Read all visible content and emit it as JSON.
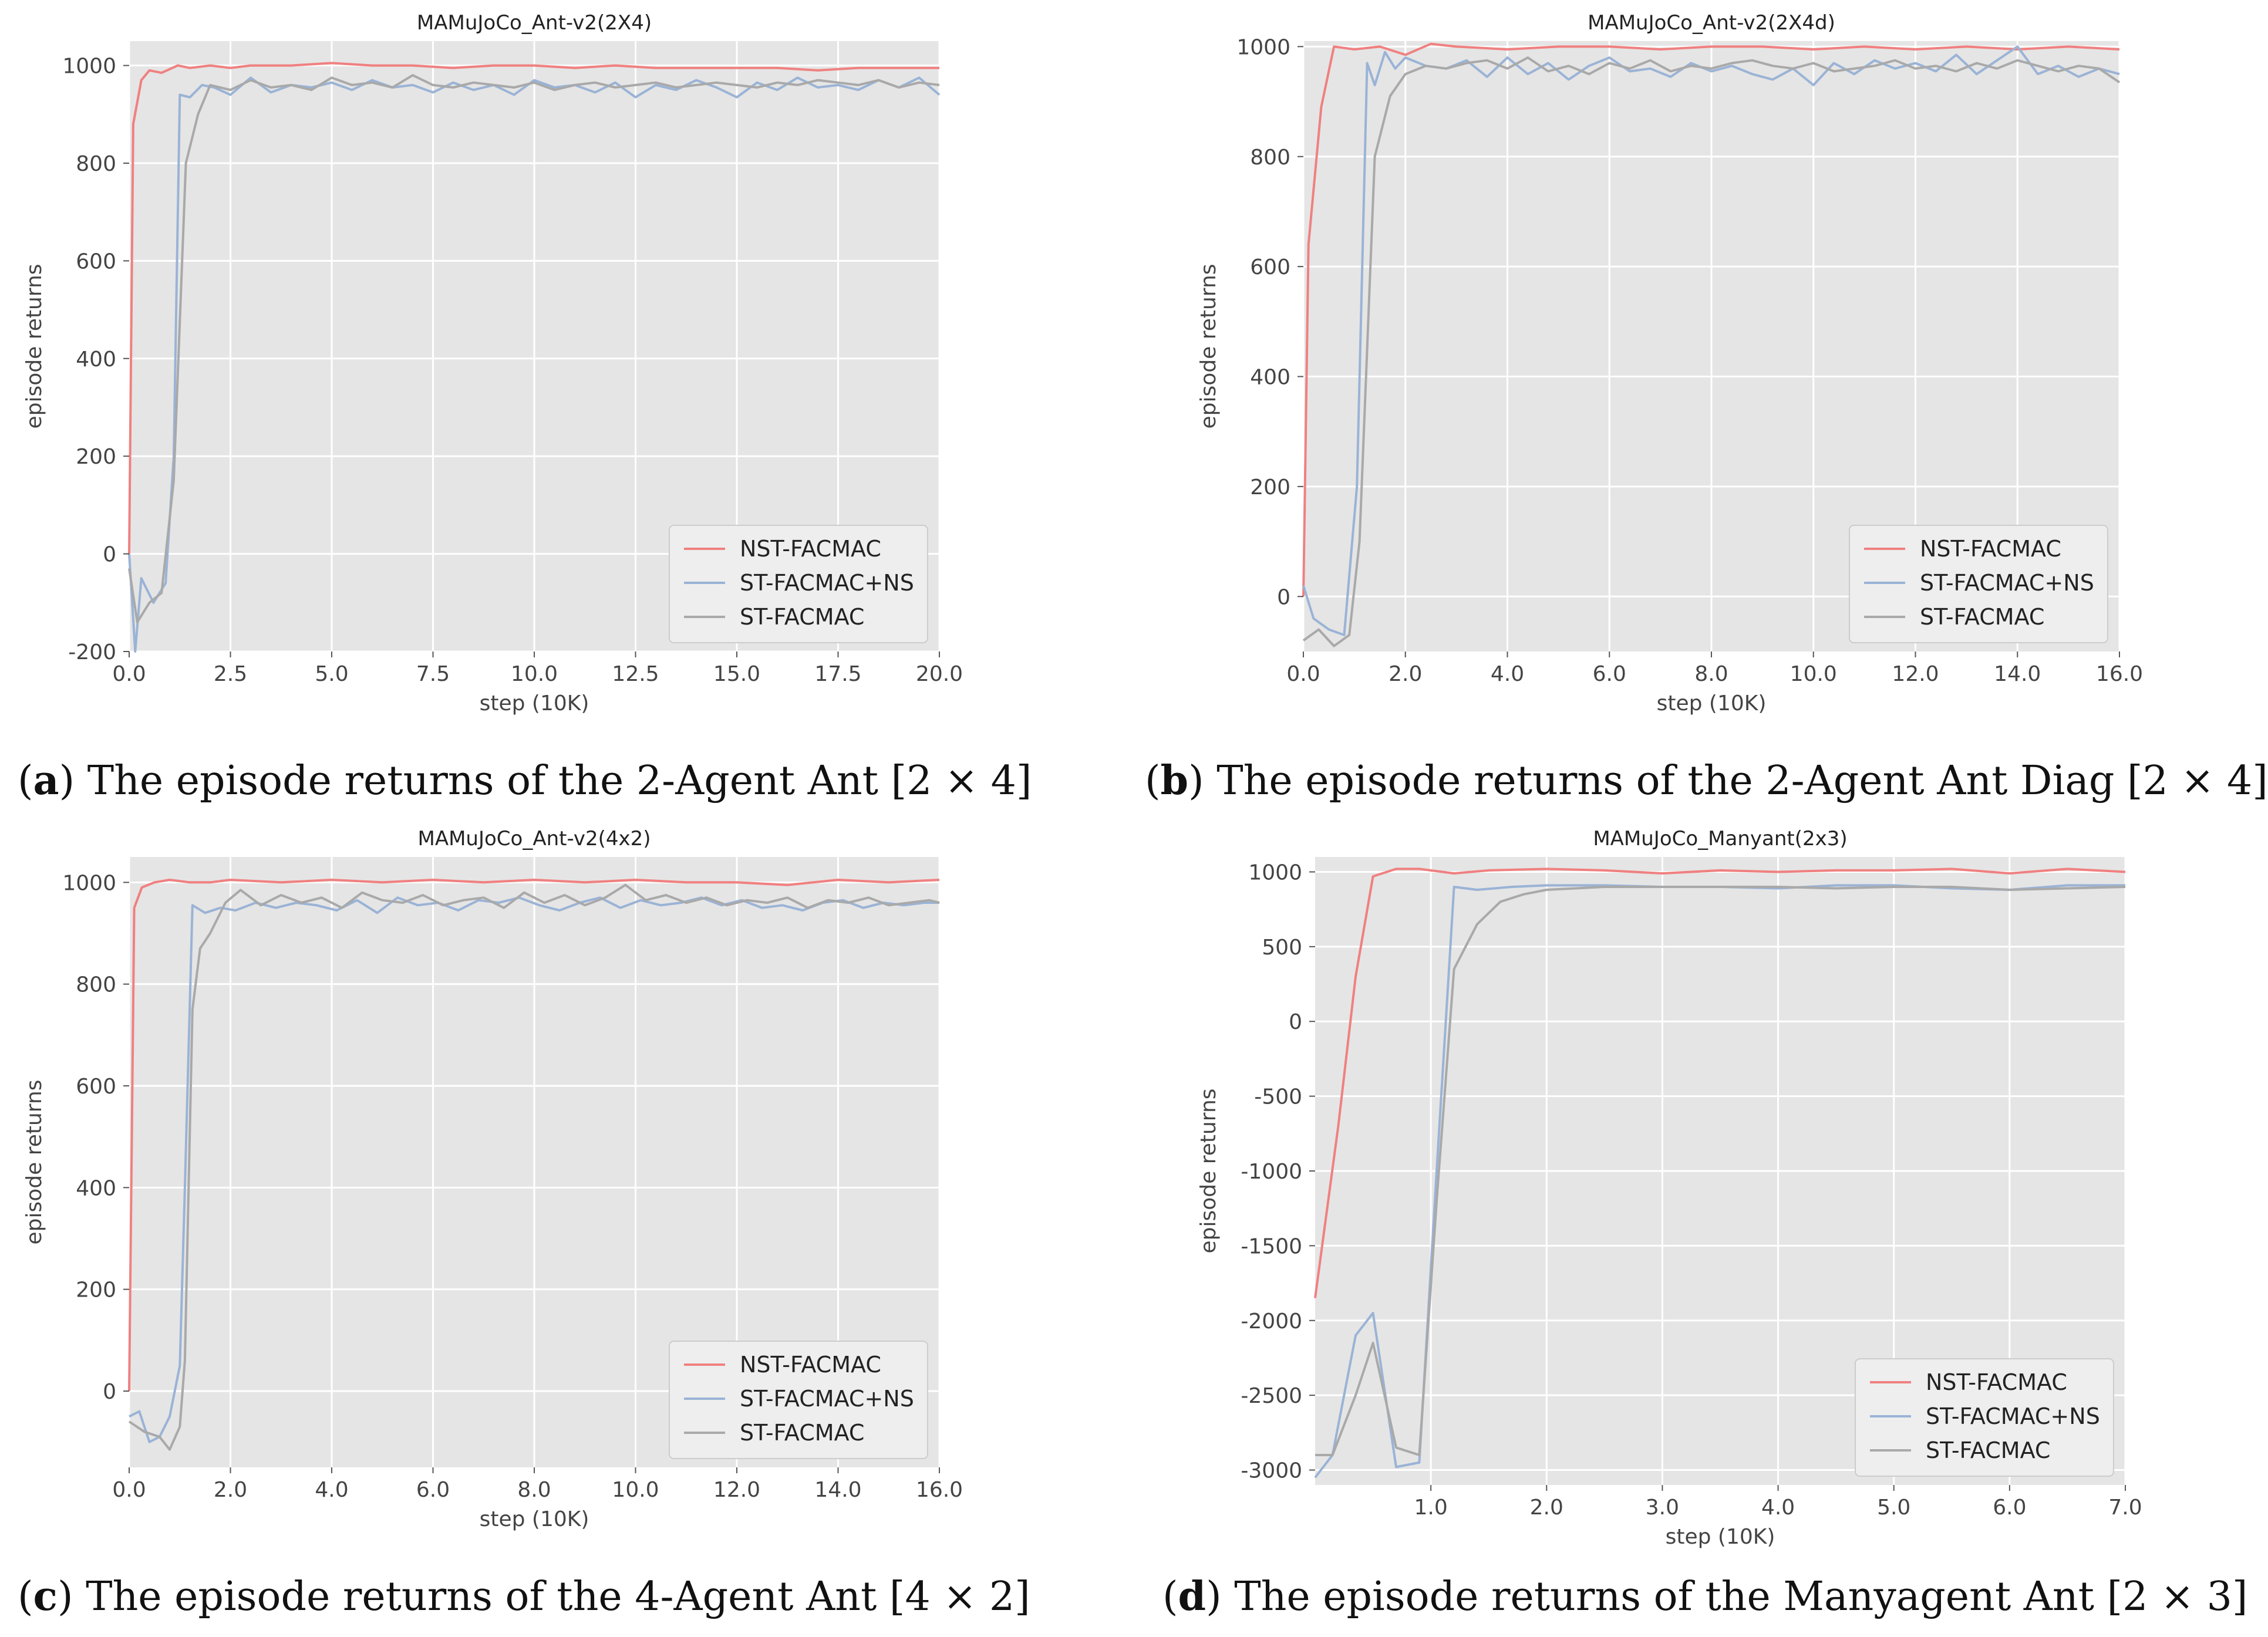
{
  "colors": {
    "nst": "#f08080",
    "stns": "#9ab3d6",
    "st": "#a9a9a9",
    "bg": "#e5e5e5",
    "grid": "#ffffff"
  },
  "legend": [
    "NST-FACMAC",
    "ST-FACMAC+NS",
    "ST-FACMAC"
  ],
  "captions": [
    {
      "letter": "a",
      "text": ") The episode returns of the 2-Agent Ant [2 × 4]"
    },
    {
      "letter": "b",
      "text": ") The episode returns of the 2-Agent Ant Diag [2 × 4]"
    },
    {
      "letter": "c",
      "text": ") The episode returns of the 4-Agent Ant [4 × 2]"
    },
    {
      "letter": "d",
      "text": ") The episode returns of the Manyagent Ant [2 × 3]"
    }
  ],
  "chart_data": [
    {
      "type": "line",
      "title": "MAMuJoCo_Ant-v2(2X4)",
      "xlabel": "step (10K)",
      "ylabel": "episode returns",
      "xlim": [
        0,
        20
      ],
      "ylim": [
        -200,
        1050
      ],
      "xticks": [
        0,
        2.5,
        5,
        7.5,
        10,
        12.5,
        15,
        17.5,
        20
      ],
      "xtick_labels": [
        "0.0",
        "2.5",
        "5.0",
        "7.5",
        "10.0",
        "12.5",
        "15.0",
        "17.5",
        "20.0"
      ],
      "yticks": [
        -200,
        0,
        200,
        400,
        600,
        800,
        1000
      ],
      "ytick_labels": [
        "-200",
        "0",
        "200",
        "400",
        "600",
        "800",
        "1000"
      ],
      "series": [
        {
          "name": "NST-FACMAC",
          "x": [
            0,
            0.1,
            0.3,
            0.5,
            0.8,
            1.2,
            1.5,
            2,
            2.5,
            3,
            4,
            5,
            6,
            7,
            8,
            9,
            10,
            11,
            12,
            13,
            14,
            15,
            16,
            17,
            18,
            19,
            20
          ],
          "y": [
            0,
            880,
            970,
            990,
            985,
            1000,
            995,
            1000,
            995,
            1000,
            1000,
            1005,
            1000,
            1000,
            995,
            1000,
            1000,
            995,
            1000,
            995,
            995,
            995,
            995,
            990,
            995,
            995,
            995
          ]
        },
        {
          "name": "ST-FACMAC+NS",
          "x": [
            0,
            0.15,
            0.3,
            0.6,
            0.9,
            1.1,
            1.25,
            1.5,
            1.8,
            2.1,
            2.5,
            3,
            3.5,
            4,
            4.5,
            5,
            5.5,
            6,
            6.5,
            7,
            7.5,
            8,
            8.5,
            9,
            9.5,
            10,
            10.5,
            11,
            11.5,
            12,
            12.5,
            13,
            13.5,
            14,
            14.5,
            15,
            15.5,
            16,
            16.5,
            17,
            17.5,
            18,
            18.5,
            19,
            19.5,
            20
          ],
          "y": [
            0,
            -200,
            -50,
            -100,
            -60,
            200,
            940,
            935,
            960,
            955,
            940,
            975,
            945,
            960,
            955,
            965,
            950,
            970,
            955,
            960,
            945,
            965,
            950,
            960,
            940,
            970,
            955,
            960,
            945,
            965,
            935,
            960,
            950,
            970,
            955,
            935,
            965,
            950,
            975,
            955,
            960,
            950,
            970,
            955,
            975,
            940
          ]
        },
        {
          "name": "ST-FACMAC",
          "x": [
            0,
            0.2,
            0.5,
            0.8,
            1.1,
            1.4,
            1.7,
            2.0,
            2.5,
            3,
            3.5,
            4,
            4.5,
            5,
            5.5,
            6,
            6.5,
            7,
            7.5,
            8,
            8.5,
            9,
            9.5,
            10,
            10.5,
            11,
            11.5,
            12,
            12.5,
            13,
            13.5,
            14,
            14.5,
            15,
            15.5,
            16,
            16.5,
            17,
            17.5,
            18,
            18.5,
            19,
            19.5,
            20
          ],
          "y": [
            -30,
            -140,
            -100,
            -80,
            150,
            800,
            900,
            960,
            950,
            970,
            955,
            960,
            950,
            975,
            960,
            965,
            955,
            980,
            960,
            955,
            965,
            960,
            955,
            965,
            950,
            960,
            965,
            955,
            960,
            965,
            955,
            960,
            965,
            960,
            955,
            965,
            960,
            970,
            965,
            960,
            970,
            955,
            965,
            960
          ]
        }
      ]
    },
    {
      "type": "line",
      "title": "MAMuJoCo_Ant-v2(2X4d)",
      "xlabel": "step (10K)",
      "ylabel": "episode returns",
      "xlim": [
        0,
        16
      ],
      "ylim": [
        -100,
        1010
      ],
      "xticks": [
        0,
        2,
        4,
        6,
        8,
        10,
        12,
        14,
        16
      ],
      "xtick_labels": [
        "0.0",
        "2.0",
        "4.0",
        "6.0",
        "8.0",
        "10.0",
        "12.0",
        "14.0",
        "16.0"
      ],
      "yticks": [
        0,
        200,
        400,
        600,
        800,
        1000
      ],
      "ytick_labels": [
        "0",
        "200",
        "400",
        "600",
        "800",
        "1000"
      ],
      "series": [
        {
          "name": "NST-FACMAC",
          "x": [
            0,
            0.1,
            0.35,
            0.6,
            1.0,
            1.5,
            2,
            2.5,
            3,
            4,
            5,
            6,
            7,
            8,
            9,
            10,
            11,
            12,
            13,
            14,
            15,
            16
          ],
          "y": [
            0,
            640,
            890,
            1000,
            995,
            1000,
            985,
            1005,
            1000,
            995,
            1000,
            1000,
            995,
            1000,
            1000,
            995,
            1000,
            995,
            1000,
            995,
            1000,
            995
          ]
        },
        {
          "name": "ST-FACMAC+NS",
          "x": [
            0,
            0.2,
            0.5,
            0.8,
            1.05,
            1.25,
            1.4,
            1.6,
            1.8,
            2.0,
            2.4,
            2.8,
            3.2,
            3.6,
            4.0,
            4.4,
            4.8,
            5.2,
            5.6,
            6.0,
            6.4,
            6.8,
            7.2,
            7.6,
            8.0,
            8.4,
            8.8,
            9.2,
            9.6,
            10.0,
            10.4,
            10.8,
            11.2,
            11.6,
            12.0,
            12.4,
            12.8,
            13.2,
            13.6,
            14.0,
            14.4,
            14.8,
            15.2,
            15.6,
            16.0
          ],
          "y": [
            20,
            -40,
            -60,
            -70,
            200,
            970,
            930,
            990,
            960,
            980,
            965,
            960,
            975,
            945,
            980,
            950,
            970,
            940,
            965,
            980,
            955,
            960,
            945,
            970,
            955,
            965,
            950,
            940,
            960,
            930,
            970,
            950,
            975,
            960,
            970,
            955,
            985,
            950,
            975,
            1000,
            950,
            965,
            945,
            960,
            950
          ]
        },
        {
          "name": "ST-FACMAC",
          "x": [
            0,
            0.3,
            0.6,
            0.9,
            1.1,
            1.4,
            1.7,
            2.0,
            2.4,
            2.8,
            3.2,
            3.6,
            4.0,
            4.4,
            4.8,
            5.2,
            5.6,
            6.0,
            6.4,
            6.8,
            7.2,
            7.6,
            8.0,
            8.4,
            8.8,
            9.2,
            9.6,
            10.0,
            10.4,
            10.8,
            11.2,
            11.6,
            12.0,
            12.4,
            12.8,
            13.2,
            13.6,
            14.0,
            14.4,
            14.8,
            15.2,
            15.6,
            16.0
          ],
          "y": [
            -80,
            -60,
            -90,
            -70,
            100,
            800,
            910,
            950,
            965,
            960,
            970,
            975,
            960,
            980,
            955,
            965,
            950,
            970,
            960,
            975,
            955,
            965,
            960,
            970,
            975,
            965,
            960,
            970,
            955,
            960,
            965,
            975,
            960,
            965,
            955,
            970,
            960,
            975,
            965,
            955,
            965,
            960,
            935
          ]
        }
      ]
    },
    {
      "type": "line",
      "title": "MAMuJoCo_Ant-v2(4x2)",
      "xlabel": "step (10K)",
      "ylabel": "episode returns",
      "xlim": [
        0,
        16
      ],
      "ylim": [
        -150,
        1050
      ],
      "xticks": [
        0,
        2,
        4,
        6,
        8,
        10,
        12,
        14,
        16
      ],
      "xtick_labels": [
        "0.0",
        "2.0",
        "4.0",
        "6.0",
        "8.0",
        "10.0",
        "12.0",
        "14.0",
        "16.0"
      ],
      "yticks": [
        0,
        200,
        400,
        600,
        800,
        1000
      ],
      "ytick_labels": [
        "0",
        "200",
        "400",
        "600",
        "800",
        "1000"
      ],
      "series": [
        {
          "name": "NST-FACMAC",
          "x": [
            0,
            0.1,
            0.25,
            0.5,
            0.8,
            1.2,
            1.6,
            2,
            3,
            4,
            5,
            6,
            7,
            8,
            9,
            10,
            11,
            12,
            13,
            14,
            15,
            16
          ],
          "y": [
            0,
            950,
            990,
            1000,
            1005,
            1000,
            1000,
            1005,
            1000,
            1005,
            1000,
            1005,
            1000,
            1005,
            1000,
            1005,
            1000,
            1000,
            995,
            1005,
            1000,
            1005
          ]
        },
        {
          "name": "ST-FACMAC+NS",
          "x": [
            0,
            0.2,
            0.4,
            0.6,
            0.8,
            1.0,
            1.1,
            1.25,
            1.5,
            1.8,
            2.1,
            2.5,
            2.9,
            3.3,
            3.7,
            4.1,
            4.5,
            4.9,
            5.3,
            5.7,
            6.1,
            6.5,
            6.9,
            7.3,
            7.7,
            8.1,
            8.5,
            8.9,
            9.3,
            9.7,
            10.1,
            10.5,
            10.9,
            11.3,
            11.7,
            12.1,
            12.5,
            12.9,
            13.3,
            13.7,
            14.1,
            14.5,
            14.9,
            15.3,
            15.7,
            16.0
          ],
          "y": [
            -50,
            -40,
            -100,
            -90,
            -50,
            50,
            400,
            955,
            940,
            950,
            945,
            960,
            950,
            960,
            955,
            945,
            965,
            940,
            970,
            955,
            960,
            945,
            965,
            960,
            970,
            955,
            945,
            960,
            970,
            950,
            965,
            955,
            960,
            970,
            955,
            965,
            950,
            955,
            945,
            960,
            965,
            950,
            960,
            955,
            960,
            960
          ]
        },
        {
          "name": "ST-FACMAC",
          "x": [
            0,
            0.3,
            0.6,
            0.8,
            1.0,
            1.1,
            1.25,
            1.4,
            1.6,
            1.9,
            2.2,
            2.6,
            3.0,
            3.4,
            3.8,
            4.2,
            4.6,
            5.0,
            5.4,
            5.8,
            6.2,
            6.6,
            7.0,
            7.4,
            7.8,
            8.2,
            8.6,
            9.0,
            9.4,
            9.8,
            10.2,
            10.6,
            11.0,
            11.4,
            11.8,
            12.2,
            12.6,
            13.0,
            13.4,
            13.8,
            14.2,
            14.6,
            15.0,
            15.4,
            15.8,
            16.0
          ],
          "y": [
            -60,
            -80,
            -90,
            -115,
            -70,
            60,
            750,
            870,
            900,
            960,
            985,
            955,
            975,
            960,
            970,
            950,
            980,
            965,
            960,
            975,
            955,
            965,
            970,
            950,
            980,
            960,
            975,
            955,
            970,
            995,
            965,
            975,
            960,
            970,
            955,
            965,
            960,
            970,
            950,
            965,
            960,
            970,
            955,
            960,
            965,
            960
          ]
        }
      ]
    },
    {
      "type": "line",
      "title": "MAMuJoCo_Manyant(2x3)",
      "xlabel": "step (10K)",
      "ylabel": "episode returns",
      "xlim": [
        0,
        7
      ],
      "ylim": [
        -3100,
        1100
      ],
      "xticks": [
        1,
        2,
        3,
        4,
        5,
        6,
        7
      ],
      "xtick_labels": [
        "1.0",
        "2.0",
        "3.0",
        "4.0",
        "5.0",
        "6.0",
        "7.0"
      ],
      "yticks": [
        -3000,
        -2500,
        -2000,
        -1500,
        -1000,
        -500,
        0,
        500,
        1000
      ],
      "ytick_labels": [
        "-3000",
        "-2500",
        "-2000",
        "-1500",
        "-1000",
        "-500",
        "0",
        "500",
        "1000"
      ],
      "series": [
        {
          "name": "NST-FACMAC",
          "x": [
            0,
            0.2,
            0.35,
            0.5,
            0.7,
            0.9,
            1.2,
            1.5,
            2,
            2.5,
            3,
            3.5,
            4,
            4.5,
            5,
            5.5,
            6,
            6.5,
            7
          ],
          "y": [
            -1850,
            -700,
            300,
            970,
            1020,
            1020,
            990,
            1010,
            1020,
            1010,
            990,
            1010,
            1000,
            1010,
            1010,
            1020,
            990,
            1020,
            1000
          ]
        },
        {
          "name": "ST-FACMAC+NS",
          "x": [
            0,
            0.15,
            0.35,
            0.5,
            0.7,
            0.9,
            1.05,
            1.2,
            1.4,
            1.7,
            2,
            2.5,
            3,
            3.5,
            4,
            4.5,
            5,
            5.5,
            6,
            6.5,
            7
          ],
          "y": [
            -3050,
            -2900,
            -2100,
            -1950,
            -2980,
            -2950,
            -1000,
            900,
            880,
            900,
            910,
            910,
            900,
            900,
            890,
            910,
            910,
            890,
            880,
            910,
            910
          ]
        },
        {
          "name": "ST-FACMAC",
          "x": [
            0,
            0.15,
            0.35,
            0.5,
            0.7,
            0.9,
            1.05,
            1.2,
            1.4,
            1.6,
            1.8,
            2.0,
            2.5,
            3,
            3.5,
            4,
            4.5,
            5,
            5.5,
            6,
            6.5,
            7
          ],
          "y": [
            -2900,
            -2900,
            -2500,
            -2150,
            -2850,
            -2900,
            -1200,
            350,
            650,
            800,
            850,
            880,
            900,
            900,
            900,
            900,
            890,
            900,
            900,
            880,
            890,
            900
          ]
        }
      ]
    }
  ]
}
